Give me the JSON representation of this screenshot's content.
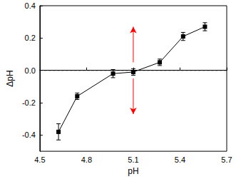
{
  "chart_data": {
    "type": "line",
    "x_label": "pH",
    "y_label": "ΔpH",
    "x": [
      4.62,
      4.74,
      4.97,
      5.1,
      5.27,
      5.42,
      5.56
    ],
    "values": [
      -0.38,
      -0.16,
      -0.02,
      -0.01,
      0.05,
      0.21,
      0.27
    ],
    "errors": [
      0.05,
      0.02,
      0.025,
      0.02,
      0.02,
      0.025,
      0.025
    ],
    "color": "#000000",
    "marker": "square",
    "xlim": [
      4.5,
      5.7
    ],
    "xticks": [
      4.5,
      4.8,
      5.1,
      5.4,
      5.7
    ],
    "ylim": [
      -0.5,
      0.4
    ],
    "yticks": [
      {
        "value": -0.4,
        "label": "-0.4"
      },
      {
        "value": -0.2,
        "label": "-0.2"
      },
      {
        "value": 0,
        "label": "0.0"
      },
      {
        "value": 0.2,
        "label": "0.2"
      },
      {
        "value": 0.4,
        "label": "0.4"
      }
    ],
    "grid": false,
    "reference_line": {
      "y": 0,
      "line_style": "dashed",
      "color": "#000000"
    },
    "arrows": [
      {
        "x": 5.1,
        "from": 0.05,
        "to": 0.27,
        "color": "#ff0000"
      },
      {
        "x": 5.1,
        "from": -0.05,
        "to": -0.27,
        "color": "#ff0000"
      }
    ]
  }
}
